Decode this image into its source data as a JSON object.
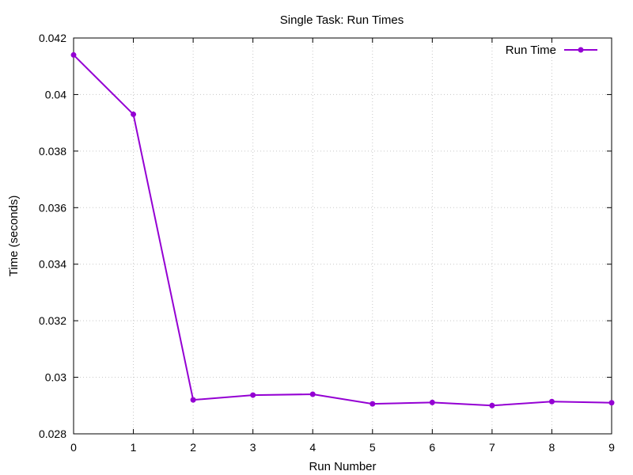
{
  "chart_data": {
    "type": "line",
    "title": "Single Task: Run Times",
    "xlabel": "Run Number",
    "ylabel": "Time (seconds)",
    "xlim": [
      0,
      9
    ],
    "ylim": [
      0.028,
      0.042
    ],
    "xticks": [
      "0",
      "1",
      "2",
      "3",
      "4",
      "5",
      "6",
      "7",
      "8",
      "9"
    ],
    "yticks": [
      "0.028",
      "0.03",
      "0.032",
      "0.034",
      "0.036",
      "0.038",
      "0.04",
      "0.042"
    ],
    "grid": true,
    "legend_position": "top-right",
    "series": [
      {
        "name": "Run Time",
        "color": "#9400d3",
        "x": [
          0,
          1,
          2,
          3,
          4,
          5,
          6,
          7,
          8,
          9
        ],
        "values": [
          0.0414,
          0.0393,
          0.0292,
          0.02937,
          0.0294,
          0.02906,
          0.02911,
          0.029,
          0.02914,
          0.0291
        ]
      }
    ]
  }
}
